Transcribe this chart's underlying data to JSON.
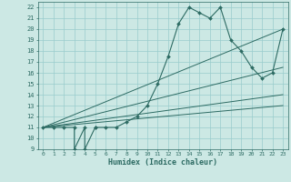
{
  "xlabel": "Humidex (Indice chaleur)",
  "xlim": [
    -0.5,
    23.5
  ],
  "ylim": [
    9,
    22.5
  ],
  "xticks": [
    0,
    1,
    2,
    3,
    4,
    5,
    6,
    7,
    8,
    9,
    10,
    11,
    12,
    13,
    14,
    15,
    16,
    17,
    18,
    19,
    20,
    21,
    22,
    23
  ],
  "yticks": [
    9,
    10,
    11,
    12,
    13,
    14,
    15,
    16,
    17,
    18,
    19,
    20,
    21,
    22
  ],
  "bg_color": "#cce8e4",
  "line_color": "#2d6b63",
  "grid_color": "#99cccc",
  "main_line_x": [
    0,
    1,
    2,
    3,
    3,
    4,
    4,
    5,
    5,
    6,
    7,
    8,
    9,
    10,
    11,
    12,
    13,
    14,
    15,
    16,
    17,
    18,
    19,
    20,
    21,
    22,
    23
  ],
  "main_line_y": [
    11,
    11,
    11,
    11,
    9,
    11,
    9,
    11,
    11,
    11,
    11,
    11.5,
    12,
    13,
    15,
    17.5,
    20.5,
    22,
    21.5,
    21,
    22,
    19,
    18,
    16.5,
    15.5,
    16,
    20
  ],
  "diag_lines": [
    {
      "x": [
        0,
        23
      ],
      "y": [
        11,
        20
      ]
    },
    {
      "x": [
        0,
        23
      ],
      "y": [
        11,
        16.5
      ]
    },
    {
      "x": [
        0,
        23
      ],
      "y": [
        11,
        14
      ]
    },
    {
      "x": [
        0,
        23
      ],
      "y": [
        11,
        13
      ]
    }
  ]
}
